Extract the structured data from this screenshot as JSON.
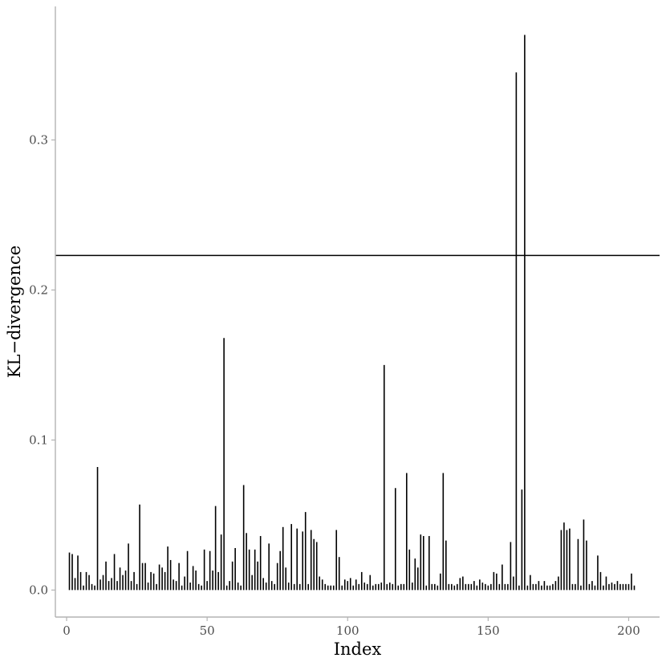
{
  "chart_data": {
    "type": "bar",
    "title": "",
    "xlabel": "Index",
    "ylabel": "KL−divergence",
    "xlim": [
      -4,
      211
    ],
    "ylim": [
      -0.018,
      0.389
    ],
    "xticks": [
      0,
      50,
      100,
      150,
      200
    ],
    "xtick_labels": [
      "0",
      "50",
      "100",
      "150",
      "200"
    ],
    "yticks": [
      0.0,
      0.1,
      0.2,
      0.3
    ],
    "ytick_labels": [
      "0.0",
      "0.1",
      "0.2",
      "0.3"
    ],
    "grid": false,
    "legend": "none",
    "bar_color": "#000000",
    "threshold": 0.223,
    "x": [
      1,
      2,
      3,
      4,
      5,
      6,
      7,
      8,
      9,
      10,
      11,
      12,
      13,
      14,
      15,
      16,
      17,
      18,
      19,
      20,
      21,
      22,
      23,
      24,
      25,
      26,
      27,
      28,
      29,
      30,
      31,
      32,
      33,
      34,
      35,
      36,
      37,
      38,
      39,
      40,
      41,
      42,
      43,
      44,
      45,
      46,
      47,
      48,
      49,
      50,
      51,
      52,
      53,
      54,
      55,
      56,
      57,
      58,
      59,
      60,
      61,
      62,
      63,
      64,
      65,
      66,
      67,
      68,
      69,
      70,
      71,
      72,
      73,
      74,
      75,
      76,
      77,
      78,
      79,
      80,
      81,
      82,
      83,
      84,
      85,
      86,
      87,
      88,
      89,
      90,
      91,
      92,
      93,
      94,
      95,
      96,
      97,
      98,
      99,
      100,
      101,
      102,
      103,
      104,
      105,
      106,
      107,
      108,
      109,
      110,
      111,
      112,
      113,
      114,
      115,
      116,
      117,
      118,
      119,
      120,
      121,
      122,
      123,
      124,
      125,
      126,
      127,
      128,
      129,
      130,
      131,
      132,
      133,
      134,
      135,
      136,
      137,
      138,
      139,
      140,
      141,
      142,
      143,
      144,
      145,
      146,
      147,
      148,
      149,
      150,
      151,
      152,
      153,
      154,
      155,
      156,
      157,
      158,
      159,
      160,
      161,
      162,
      163,
      164,
      165,
      166,
      167,
      168,
      169,
      170,
      171,
      172,
      173,
      174,
      175,
      176,
      177,
      178,
      179,
      180,
      181,
      182,
      183,
      184,
      185,
      186,
      187,
      188,
      189,
      190,
      191,
      192,
      193,
      194,
      195,
      196,
      197,
      198,
      199,
      200,
      201,
      202
    ],
    "values": [
      0.025,
      0.024,
      0.008,
      0.023,
      0.012,
      0.003,
      0.012,
      0.01,
      0.004,
      0.003,
      0.082,
      0.007,
      0.01,
      0.019,
      0.006,
      0.008,
      0.024,
      0.006,
      0.015,
      0.01,
      0.013,
      0.031,
      0.006,
      0.012,
      0.004,
      0.057,
      0.018,
      0.018,
      0.005,
      0.012,
      0.011,
      0.004,
      0.017,
      0.015,
      0.012,
      0.029,
      0.02,
      0.007,
      0.006,
      0.018,
      0.003,
      0.009,
      0.026,
      0.005,
      0.016,
      0.013,
      0.004,
      0.003,
      0.027,
      0.006,
      0.026,
      0.013,
      0.056,
      0.012,
      0.037,
      0.168,
      0.003,
      0.006,
      0.019,
      0.028,
      0.005,
      0.003,
      0.07,
      0.038,
      0.027,
      0.01,
      0.027,
      0.019,
      0.036,
      0.008,
      0.005,
      0.031,
      0.006,
      0.004,
      0.018,
      0.026,
      0.042,
      0.015,
      0.005,
      0.044,
      0.004,
      0.041,
      0.004,
      0.039,
      0.052,
      0.004,
      0.04,
      0.034,
      0.032,
      0.009,
      0.007,
      0.004,
      0.003,
      0.003,
      0.003,
      0.04,
      0.022,
      0.003,
      0.007,
      0.006,
      0.008,
      0.003,
      0.007,
      0.004,
      0.012,
      0.005,
      0.004,
      0.01,
      0.003,
      0.004,
      0.004,
      0.005,
      0.15,
      0.004,
      0.005,
      0.004,
      0.068,
      0.003,
      0.004,
      0.004,
      0.078,
      0.027,
      0.005,
      0.021,
      0.015,
      0.037,
      0.036,
      0.003,
      0.036,
      0.004,
      0.004,
      0.003,
      0.011,
      0.078,
      0.033,
      0.004,
      0.004,
      0.003,
      0.004,
      0.008,
      0.009,
      0.004,
      0.004,
      0.004,
      0.006,
      0.003,
      0.007,
      0.005,
      0.004,
      0.003,
      0.004,
      0.012,
      0.011,
      0.004,
      0.017,
      0.004,
      0.004,
      0.032,
      0.009,
      0.345,
      0.003,
      0.067,
      0.37,
      0.003,
      0.01,
      0.004,
      0.004,
      0.006,
      0.003,
      0.006,
      0.003,
      0.003,
      0.004,
      0.006,
      0.009,
      0.04,
      0.045,
      0.04,
      0.041,
      0.004,
      0.004,
      0.034,
      0.003,
      0.047,
      0.033,
      0.004,
      0.006,
      0.003,
      0.023,
      0.012,
      0.003,
      0.009,
      0.004,
      0.005,
      0.004,
      0.006,
      0.004,
      0.004,
      0.004,
      0.004,
      0.011,
      0.003
    ]
  }
}
